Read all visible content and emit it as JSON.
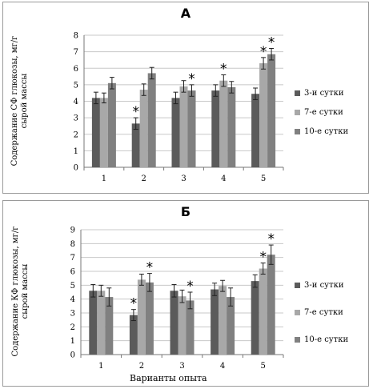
{
  "colors": {
    "series": [
      "#5b5b5b",
      "#a8a8a8",
      "#808080"
    ],
    "axis": "#777777",
    "grid": "#c8c8c8"
  },
  "chart_data": [
    {
      "type": "bar",
      "title": "А",
      "ylabel": "Содержание СФ глюкозы, мг/г сырой массы",
      "xlabel": "",
      "categories": [
        "1",
        "2",
        "3",
        "4",
        "5"
      ],
      "ylim": [
        0,
        8
      ],
      "yticks": [
        "0",
        "1",
        "2",
        "3",
        "4",
        "5",
        "6",
        "7",
        "8"
      ],
      "grid": true,
      "legend_position": "right",
      "series": [
        {
          "name": "3-и сутки",
          "values": [
            4.2,
            2.65,
            4.2,
            4.65,
            4.45
          ],
          "errors": [
            0.35,
            0.35,
            0.35,
            0.35,
            0.35
          ],
          "significant": [
            false,
            true,
            false,
            false,
            false
          ]
        },
        {
          "name": "7-е сутки",
          "values": [
            4.2,
            4.7,
            4.9,
            5.25,
            6.3
          ],
          "errors": [
            0.3,
            0.35,
            0.35,
            0.35,
            0.35
          ],
          "significant": [
            false,
            false,
            false,
            true,
            true
          ]
        },
        {
          "name": "10-е сутки",
          "values": [
            5.1,
            5.7,
            4.65,
            4.85,
            6.85
          ],
          "errors": [
            0.35,
            0.35,
            0.35,
            0.35,
            0.35
          ],
          "significant": [
            false,
            false,
            true,
            false,
            true
          ]
        }
      ],
      "annotation_mark": "*"
    },
    {
      "type": "bar",
      "title": "Б",
      "ylabel": "Содержание КФ глюкозы, мг/г сырой массы",
      "xlabel": "Варианты опыта",
      "categories": [
        "1",
        "2",
        "3",
        "4",
        "5"
      ],
      "ylim": [
        0,
        9
      ],
      "yticks": [
        "0",
        "1",
        "2",
        "3",
        "4",
        "5",
        "6",
        "7",
        "8",
        "9"
      ],
      "grid": true,
      "legend_position": "right",
      "series": [
        {
          "name": "3-и сутки",
          "values": [
            4.6,
            2.85,
            4.6,
            4.7,
            5.3
          ],
          "errors": [
            0.45,
            0.4,
            0.45,
            0.45,
            0.45
          ],
          "significant": [
            false,
            true,
            false,
            false,
            false
          ]
        },
        {
          "name": "7-е сутки",
          "values": [
            4.6,
            5.4,
            4.2,
            4.95,
            6.2
          ],
          "errors": [
            0.4,
            0.4,
            0.45,
            0.4,
            0.4
          ],
          "significant": [
            false,
            false,
            false,
            false,
            true
          ]
        },
        {
          "name": "10-е сутки",
          "values": [
            4.15,
            5.2,
            3.9,
            4.15,
            7.2
          ],
          "errors": [
            0.65,
            0.65,
            0.6,
            0.65,
            0.7
          ],
          "significant": [
            false,
            true,
            true,
            false,
            true
          ]
        }
      ],
      "annotation_mark": "*"
    }
  ]
}
